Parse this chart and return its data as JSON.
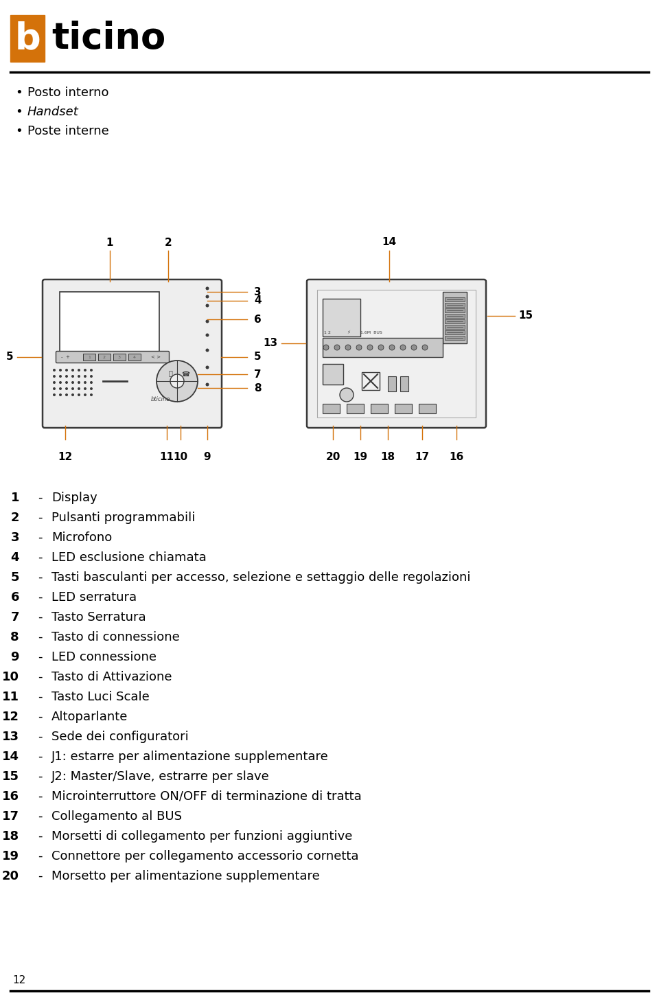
{
  "bg_color": "#ffffff",
  "line_color": "#000000",
  "orange_color": "#D4720A",
  "dark_gray": "#3a3a3a",
  "mid_gray": "#888888",
  "light_gray": "#cccccc",
  "very_light_gray": "#eeeeee",
  "bullet_items": [
    "Posto interno",
    "Handset",
    "Poste interne"
  ],
  "bullet_italic": [
    false,
    true,
    false
  ],
  "labels": [
    {
      "num": "1",
      "text": "Display"
    },
    {
      "num": "2",
      "text": "Pulsanti programmabili"
    },
    {
      "num": "3",
      "text": "Microfono"
    },
    {
      "num": "4",
      "text": "LED esclusione chiamata"
    },
    {
      "num": "5",
      "text": "Tasti basculanti per accesso, selezione e settaggio delle regolazioni"
    },
    {
      "num": "6",
      "text": "LED serratura"
    },
    {
      "num": "7",
      "text": "Tasto Serratura"
    },
    {
      "num": "8",
      "text": "Tasto di connessione"
    },
    {
      "num": "9",
      "text": "LED connessione"
    },
    {
      "num": "10",
      "text": "Tasto di Attivazione"
    },
    {
      "num": "11",
      "text": "Tasto Luci Scale"
    },
    {
      "num": "12",
      "text": "Altoparlante"
    },
    {
      "num": "13",
      "text": "Sede dei configuratori"
    },
    {
      "num": "14",
      "text": "J1: estarre per alimentazione supplementare"
    },
    {
      "num": "15",
      "text": "J2: Master/Slave, estrarre per slave"
    },
    {
      "num": "16",
      "text": "Microinterruttore ON/OFF di terminazione di tratta"
    },
    {
      "num": "17",
      "text": "Collegamento al BUS"
    },
    {
      "num": "18",
      "text": "Morsetti di collegamento per funzioni aggiuntive"
    },
    {
      "num": "19",
      "text": "Connettore per collegamento accessorio cornetta"
    },
    {
      "num": "20",
      "text": "Morsetto per alimentazione supplementare"
    }
  ],
  "page_num": "12",
  "fig_w": 9.6,
  "fig_h": 14.65,
  "dpi": 100
}
